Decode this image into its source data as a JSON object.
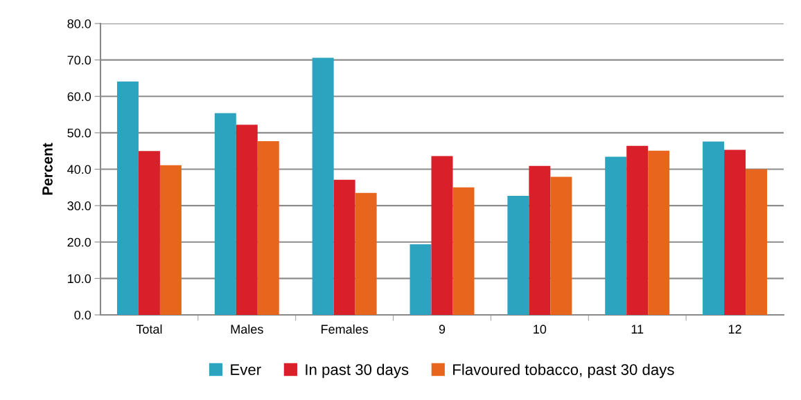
{
  "chart_data": {
    "type": "bar",
    "ylabel": "Percent",
    "categories": [
      "Total",
      "Males",
      "Females",
      "9",
      "10",
      "11",
      "12"
    ],
    "series": [
      {
        "name": "Ever",
        "color": "#2ca3bf",
        "values": [
          64.1,
          55.4,
          70.6,
          19.4,
          32.7,
          43.4,
          47.6
        ]
      },
      {
        "name": "In past 30 days",
        "color": "#d9202a",
        "values": [
          45.0,
          52.2,
          37.1,
          43.6,
          40.9,
          46.4,
          45.3
        ]
      },
      {
        "name": "Flavoured tobacco, past 30 days",
        "color": "#e8651e",
        "values": [
          41.1,
          47.7,
          33.5,
          35.0,
          37.9,
          45.1,
          40.0
        ]
      }
    ],
    "ylim": [
      0,
      80
    ],
    "yticks": [
      {
        "value": 0,
        "label": "0.0"
      },
      {
        "value": 10,
        "label": "10.0"
      },
      {
        "value": 20,
        "label": "20.0"
      },
      {
        "value": 30,
        "label": "30.0"
      },
      {
        "value": 40,
        "label": "40.0"
      },
      {
        "value": 50,
        "label": "50.0"
      },
      {
        "value": 60,
        "label": "60.0"
      },
      {
        "value": 70,
        "label": "70.0"
      },
      {
        "value": 80,
        "label": "80.0"
      }
    ],
    "grid": "y",
    "legend": "bottom"
  }
}
